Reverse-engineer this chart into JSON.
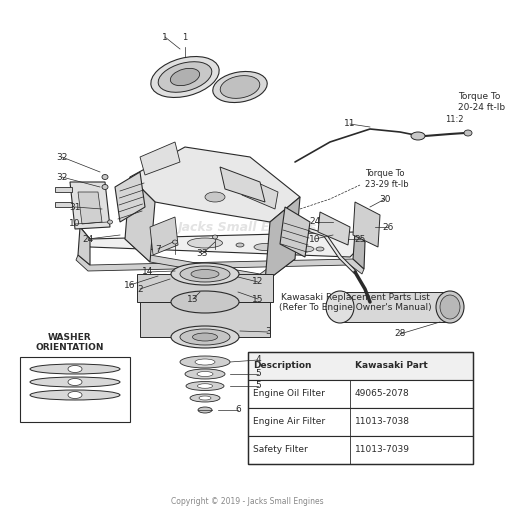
{
  "bg_color": "#ffffff",
  "title_line1": "Kawasaki Replacement Parts List",
  "title_line2": "(Refer To Engine Owner's Manual)",
  "table_headers": [
    "Description",
    "Kawasaki Part"
  ],
  "table_rows": [
    [
      "Engine Oil Filter",
      "49065-2078"
    ],
    [
      "Engine Air Filter",
      "11013-7038"
    ],
    [
      "Safety Filter",
      "11013-7039"
    ]
  ],
  "copyright": "Copyright © 2019 - Jacks Small Engines",
  "watermark": "Jacks Small Engines",
  "washer_label_line1": "WASHER",
  "washer_label_line2": "ORIENTATION",
  "torque1_label": "Torque To\n23-29 ft-lb",
  "torque2_label": "Torque To\n20-24 ft-lb",
  "torque2_ref": "11:2",
  "diagram_color": "#2a2a2a",
  "line_color": "#444444",
  "fill_light": "#e8e8e8",
  "fill_mid": "#d0d0d0",
  "fill_dark": "#b8b8b8",
  "table_border_color": "#333333",
  "watermark_color": "#cccccc",
  "copyright_color": "#888888"
}
